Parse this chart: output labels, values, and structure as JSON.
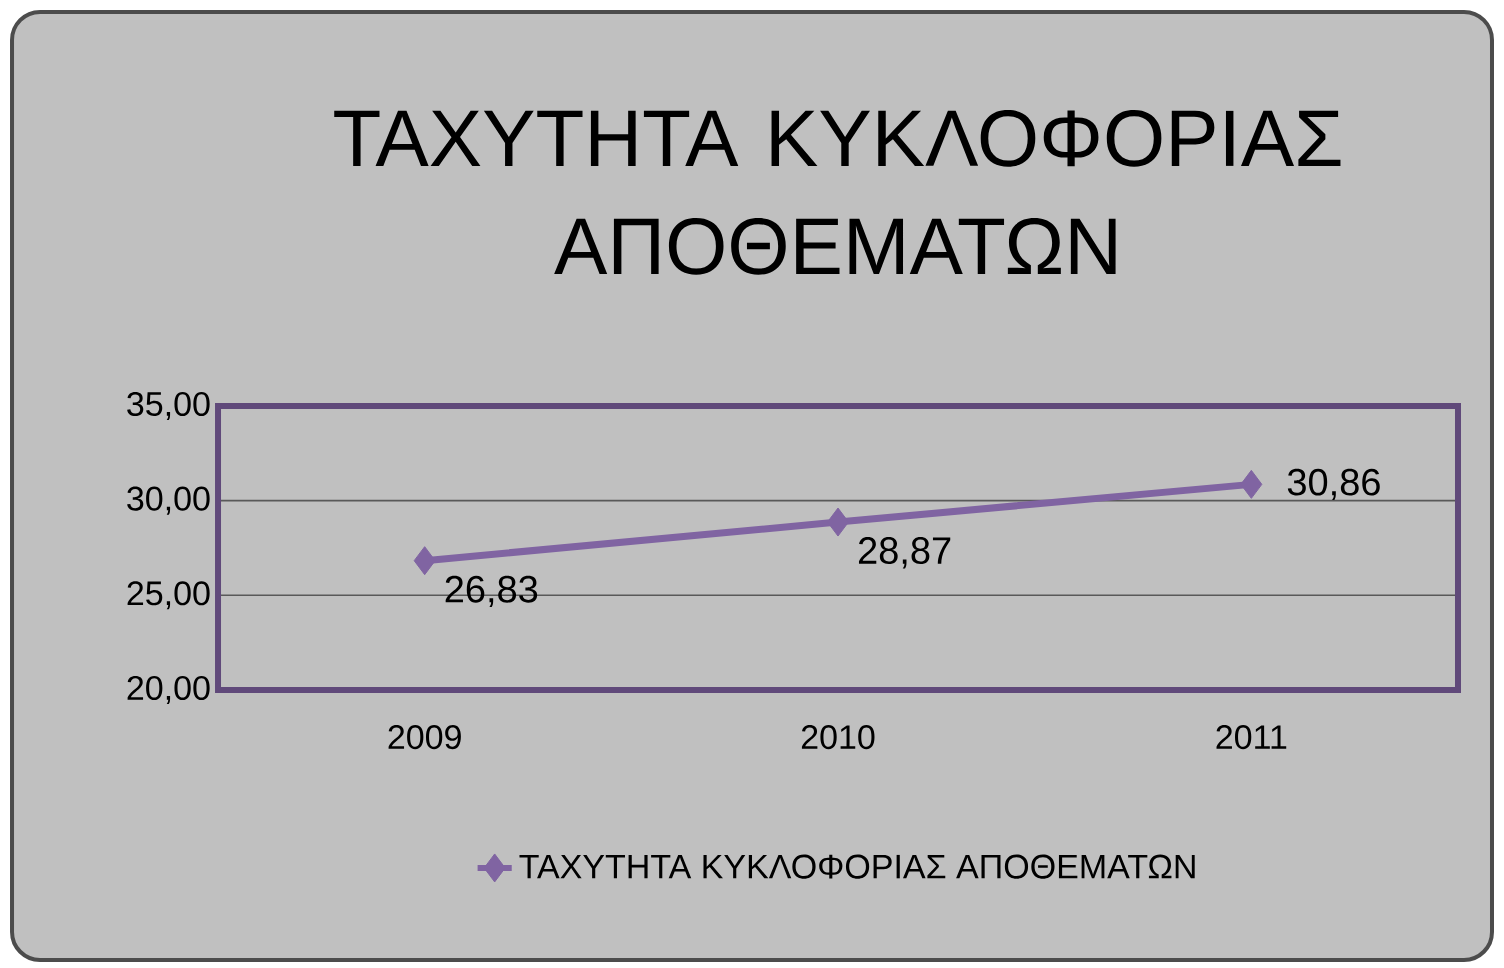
{
  "chart_data": {
    "type": "line",
    "title": "ΤΑΧΥΤΗΤΑ ΚΥΚΛΟΦΟΡΙΑΣ ΑΠΟΘΕΜΑΤΩΝ",
    "categories": [
      "2009",
      "2010",
      "2011"
    ],
    "series": [
      {
        "name": "ΤΑΧΥΤΗΤΑ ΚΥΚΛΟΦΟΡΙΑΣ ΑΠΟΘΕΜΑΤΩΝ",
        "color": "#8064a2",
        "values": [
          26.83,
          28.87,
          30.86
        ],
        "value_labels": [
          "26,83",
          "28,87",
          "30,86"
        ]
      }
    ],
    "ylim": [
      20,
      35
    ],
    "yticks": [
      {
        "value": 20,
        "label": "20,00"
      },
      {
        "value": 25,
        "label": "25,00"
      },
      {
        "value": 30,
        "label": "30,00"
      },
      {
        "value": 35,
        "label": "35,00"
      }
    ],
    "grid": "y",
    "legend": "bottom",
    "marker": "diamond",
    "line_style": "solid"
  }
}
